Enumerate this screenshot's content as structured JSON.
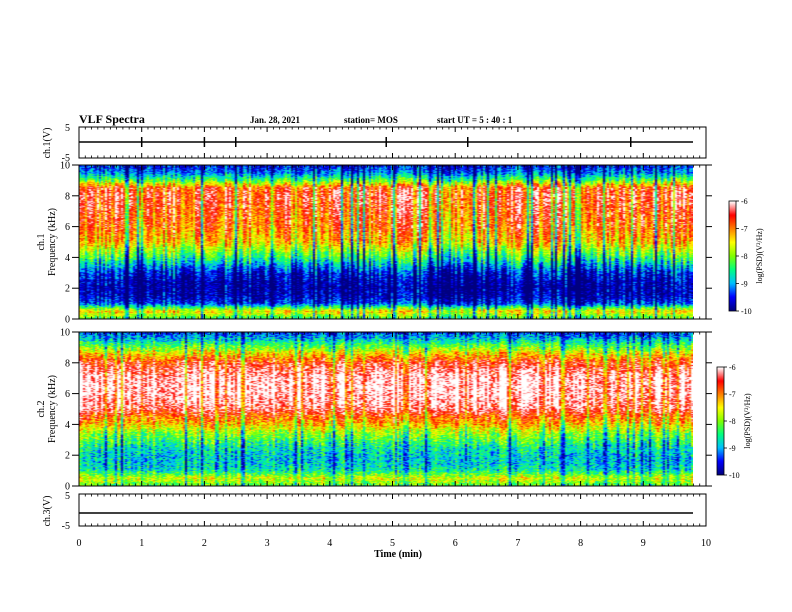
{
  "header": {
    "title": "VLF Spectra",
    "date": "Jan. 28, 2021",
    "station": "station= MOS",
    "start_time": "start  UT =  5 : 40 : 1"
  },
  "colors": {
    "colormap": [
      "#000080",
      "#0000ff",
      "#00c0ff",
      "#00ff80",
      "#80ff00",
      "#ffff00",
      "#ff8000",
      "#ff0000",
      "#ffffff"
    ],
    "axis": "#000000"
  },
  "chart_data": [
    {
      "type": "line",
      "panel": "ch1-waveform",
      "ylabel": "ch.1(V)",
      "ylim": [
        -5,
        5
      ],
      "yticks": [
        "5",
        "-5"
      ],
      "xlim": [
        0,
        10
      ],
      "series": [
        {
          "x": [
            0,
            9.8
          ],
          "y": [
            0,
            0
          ]
        }
      ],
      "spikes_min": [
        1.0,
        2.0,
        2.5,
        4.9,
        6.2,
        8.8
      ]
    },
    {
      "type": "heatmap",
      "panel": "ch1-spectrogram",
      "ylabel": "ch.1\nFrequency (kHz)",
      "ylim": [
        0,
        10
      ],
      "yticks": [
        "0",
        "2",
        "4",
        "6",
        "8",
        "10"
      ],
      "xlim": [
        0,
        10
      ],
      "data_end_min": 9.8,
      "colorbar": {
        "label": "log(PSD)(V²/Hz)",
        "range": [
          -10,
          -6
        ],
        "ticks": [
          "-6",
          "-7",
          "-8",
          "-9",
          "-10"
        ]
      },
      "profile_khz": [
        0,
        0.5,
        1,
        1.5,
        2,
        2.5,
        3,
        3.5,
        4,
        5,
        6,
        7,
        8,
        8.5,
        9,
        9.5,
        10
      ],
      "profile_log_psd": [
        -8.4,
        -7.4,
        -9.4,
        -9.8,
        -9.9,
        -9.8,
        -9.6,
        -9.0,
        -8.4,
        -7.3,
        -6.9,
        -6.7,
        -6.5,
        -6.7,
        -8.2,
        -9.2,
        -9.6
      ]
    },
    {
      "type": "heatmap",
      "panel": "ch2-spectrogram",
      "ylabel": "ch.2\nFrequency (kHz)",
      "ylim": [
        0,
        10
      ],
      "yticks": [
        "0",
        "2",
        "4",
        "6",
        "8",
        "10"
      ],
      "xlim": [
        0,
        10
      ],
      "data_end_min": 9.8,
      "colorbar": {
        "label": "log(PSD)(V²/Hz)",
        "range": [
          -10,
          -6
        ],
        "ticks": [
          "-6",
          "-7",
          "-8",
          "-9",
          "-10"
        ]
      },
      "profile_khz": [
        0,
        0.5,
        1,
        1.5,
        2,
        2.5,
        3,
        3.5,
        4,
        4.5,
        5,
        6,
        7,
        8,
        8.5,
        9,
        9.5,
        10
      ],
      "profile_log_psd": [
        -8.2,
        -7.6,
        -8.6,
        -8.8,
        -8.8,
        -8.6,
        -8.2,
        -7.8,
        -7.2,
        -6.8,
        -6.2,
        -5.9,
        -5.9,
        -6.5,
        -7.2,
        -8.0,
        -8.8,
        -9.4
      ]
    },
    {
      "type": "line",
      "panel": "ch3-waveform",
      "ylabel": "ch.3(V)",
      "ylim": [
        -5,
        5
      ],
      "yticks": [
        "5",
        "-5"
      ],
      "xlim": [
        0,
        10
      ],
      "series": [
        {
          "x": [
            0,
            9.8
          ],
          "y": [
            0,
            0
          ]
        }
      ]
    }
  ],
  "x_axis": {
    "label": "Time (min)",
    "ticks": [
      "0",
      "1",
      "2",
      "3",
      "4",
      "5",
      "6",
      "7",
      "8",
      "9",
      "10"
    ]
  }
}
